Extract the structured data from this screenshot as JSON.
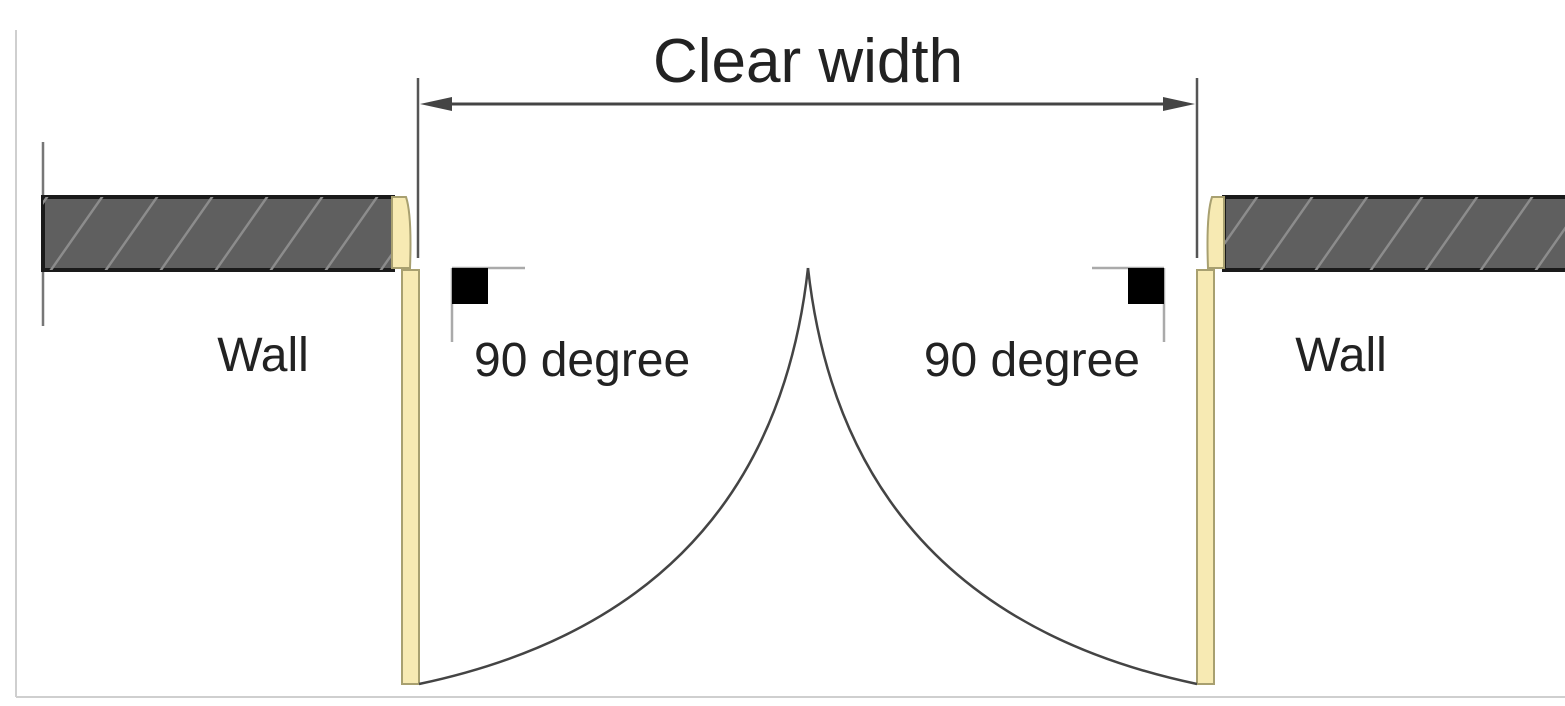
{
  "labels": {
    "dimension": "Clear width",
    "wall_left": "Wall",
    "wall_right": "Wall",
    "angle_left": "90 degree",
    "angle_right": "90 degree"
  },
  "colors": {
    "wall_fill": "#5f5f5f",
    "wall_hatch": "#8c8c8c",
    "door_leaf": "#f7eab3",
    "door_leaf_edge": "#a8a070",
    "line": "#444444",
    "frame": "#d0d0d0",
    "angle_marker": "#000000"
  }
}
